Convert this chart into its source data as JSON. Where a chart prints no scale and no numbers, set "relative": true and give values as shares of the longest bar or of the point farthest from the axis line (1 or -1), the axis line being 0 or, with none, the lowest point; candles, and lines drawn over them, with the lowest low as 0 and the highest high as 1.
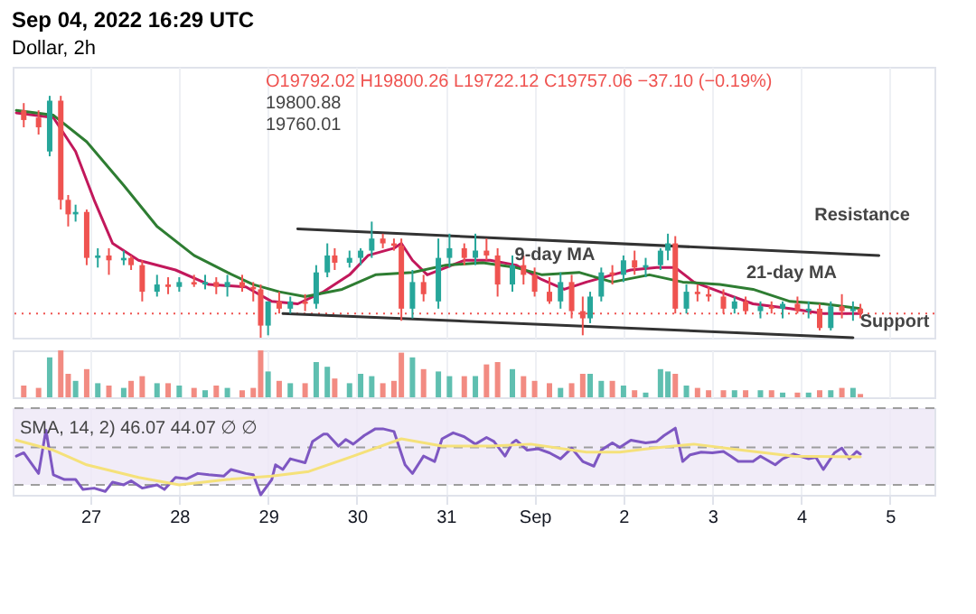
{
  "chart_data": [
    {
      "type": "candlestick",
      "title": "Sep 04, 2022 16:29 UTC",
      "subtitle": "Dollar, 2h",
      "relative": true,
      "grid": "x",
      "tick_labels": false,
      "annotations": [
        "O19792.02  H19800.26  L19722.12  C19757.06  −37.10 (−0.19%)",
        "19800.88",
        "19760.01",
        "21-day MA",
        "9-day MA",
        "Resistance",
        "Support"
      ],
      "xlim": [
        "2022-08-26T03:00",
        "2022-09-05T12:00"
      ],
      "xticks": [
        {
          "value": "2022-08-27",
          "label": null
        },
        {
          "value": "2022-08-28",
          "label": null
        },
        {
          "value": "2022-08-29",
          "label": null
        },
        {
          "value": "2022-08-30",
          "label": null
        },
        {
          "value": "2022-08-31",
          "label": null
        },
        {
          "value": "2022-09-01",
          "label": null
        },
        {
          "value": "2022-09-02",
          "label": null
        },
        {
          "value": "2022-09-03",
          "label": null
        },
        {
          "value": "2022-09-04",
          "label": null
        },
        {
          "value": "2022-09-05",
          "label": null
        }
      ],
      "x": [
        "2022-08-26T06:00",
        "2022-08-26T10:00",
        "2022-08-26T13:00",
        "2022-08-26T16:00",
        "2022-08-26T18:00",
        "2022-08-26T20:00",
        "2022-08-26T23:00",
        "2022-08-27T02:00",
        "2022-08-27T05:00",
        "2022-08-27T09:00",
        "2022-08-27T11:00",
        "2022-08-27T14:00",
        "2022-08-27T18:00",
        "2022-08-27T21:00",
        "2022-08-28T00:00",
        "2022-08-28T04:00",
        "2022-08-28T07:00",
        "2022-08-28T10:00",
        "2022-08-28T13:00",
        "2022-08-28T17:00",
        "2022-08-28T20:00",
        "2022-08-28T22:00",
        "2022-08-29T00:00",
        "2022-08-29T03:00",
        "2022-08-29T06:00",
        "2022-08-29T10:00",
        "2022-08-29T13:00",
        "2022-08-29T16:00",
        "2022-08-29T18:00",
        "2022-08-29T22:00",
        "2022-08-30T01:00",
        "2022-08-30T04:00",
        "2022-08-30T07:00",
        "2022-08-30T10:00",
        "2022-08-30T12:00",
        "2022-08-30T15:00",
        "2022-08-30T18:00",
        "2022-08-30T22:00",
        "2022-08-31T01:00",
        "2022-08-31T05:00",
        "2022-08-31T08:00",
        "2022-08-31T11:00",
        "2022-08-31T14:00",
        "2022-08-31T18:00",
        "2022-08-31T21:00",
        "2022-09-01T00:00",
        "2022-09-01T04:00",
        "2022-09-01T07:00",
        "2022-09-01T10:00",
        "2022-09-01T13:00",
        "2022-09-01T15:00",
        "2022-09-01T18:00",
        "2022-09-01T21:00",
        "2022-09-02T00:00",
        "2022-09-02T03:00",
        "2022-09-02T06:00",
        "2022-09-02T10:00",
        "2022-09-02T12:00",
        "2022-09-02T14:00",
        "2022-09-02T17:00",
        "2022-09-02T20:00",
        "2022-09-02T23:00",
        "2022-09-03T03:00",
        "2022-09-03T06:00",
        "2022-09-03T09:00",
        "2022-09-03T13:00",
        "2022-09-03T16:00",
        "2022-09-03T19:00",
        "2022-09-03T23:00",
        "2022-09-04T02:00",
        "2022-09-04T05:00",
        "2022-09-04T08:00",
        "2022-09-04T11:00",
        "2022-09-04T14:00",
        "2022-09-04T16:00"
      ],
      "ohlc": [
        [
          0.94,
          0.97,
          0.87,
          0.9
        ],
        [
          0.91,
          0.94,
          0.84,
          0.87
        ],
        [
          0.77,
          1.0,
          0.75,
          0.98
        ],
        [
          0.98,
          1.0,
          0.53,
          0.57
        ],
        [
          0.57,
          0.59,
          0.46,
          0.51
        ],
        [
          0.51,
          0.55,
          0.48,
          0.52
        ],
        [
          0.52,
          0.53,
          0.3,
          0.33
        ],
        [
          0.33,
          0.37,
          0.29,
          0.34
        ],
        [
          0.34,
          0.37,
          0.26,
          0.32
        ],
        [
          0.32,
          0.36,
          0.3,
          0.33
        ],
        [
          0.33,
          0.34,
          0.28,
          0.3
        ],
        [
          0.3,
          0.32,
          0.15,
          0.19
        ],
        [
          0.19,
          0.26,
          0.17,
          0.22
        ],
        [
          0.22,
          0.25,
          0.18,
          0.21
        ],
        [
          0.21,
          0.25,
          0.19,
          0.23
        ],
        [
          0.23,
          0.26,
          0.21,
          0.22
        ],
        [
          0.22,
          0.26,
          0.2,
          0.23
        ],
        [
          0.23,
          0.25,
          0.18,
          0.21
        ],
        [
          0.21,
          0.26,
          0.17,
          0.23
        ],
        [
          0.23,
          0.26,
          0.19,
          0.21
        ],
        [
          0.21,
          0.23,
          0.15,
          0.2
        ],
        [
          0.2,
          0.22,
          0,
          0.05
        ],
        [
          0.05,
          0.15,
          0.01,
          0.15
        ],
        [
          0.15,
          0.19,
          0.1,
          0.12
        ],
        [
          0.12,
          0.17,
          0.1,
          0.15
        ],
        [
          0.15,
          0.18,
          0.11,
          0.14
        ],
        [
          0.14,
          0.3,
          0.12,
          0.27
        ],
        [
          0.27,
          0.39,
          0.25,
          0.34
        ],
        [
          0.34,
          0.37,
          0.28,
          0.31
        ],
        [
          0.31,
          0.36,
          0.29,
          0.33
        ],
        [
          0.33,
          0.37,
          0.3,
          0.36
        ],
        [
          0.36,
          0.48,
          0.33,
          0.41
        ],
        [
          0.41,
          0.43,
          0.37,
          0.39
        ],
        [
          0.39,
          0.41,
          0.36,
          0.38
        ],
        [
          0.38,
          0.41,
          0.07,
          0.12
        ],
        [
          0.12,
          0.28,
          0.08,
          0.23
        ],
        [
          0.23,
          0.26,
          0.15,
          0.18
        ],
        [
          0.15,
          0.41,
          0.12,
          0.33
        ],
        [
          0.33,
          0.43,
          0.29,
          0.37
        ],
        [
          0.37,
          0.39,
          0.3,
          0.33
        ],
        [
          0.33,
          0.43,
          0.3,
          0.36
        ],
        [
          0.36,
          0.41,
          0.32,
          0.34
        ],
        [
          0.34,
          0.37,
          0.17,
          0.22
        ],
        [
          0.22,
          0.34,
          0.19,
          0.3
        ],
        [
          0.3,
          0.34,
          0.22,
          0.26
        ],
        [
          0.26,
          0.29,
          0.17,
          0.19
        ],
        [
          0.19,
          0.25,
          0.14,
          0.15
        ],
        [
          0.15,
          0.27,
          0.12,
          0.23
        ],
        [
          0.23,
          0.26,
          0.08,
          0.11
        ],
        [
          0.11,
          0.17,
          0.01,
          0.08
        ],
        [
          0.08,
          0.19,
          0.06,
          0.17
        ],
        [
          0.17,
          0.29,
          0.15,
          0.27
        ],
        [
          0.27,
          0.3,
          0.22,
          0.26
        ],
        [
          0.26,
          0.34,
          0.23,
          0.32
        ],
        [
          0.32,
          0.36,
          0.26,
          0.29
        ],
        [
          0.29,
          0.33,
          0.25,
          0.3
        ],
        [
          0.3,
          0.37,
          0.28,
          0.36
        ],
        [
          0.36,
          0.43,
          0.32,
          0.39
        ],
        [
          0.39,
          0.42,
          0.1,
          0.12
        ],
        [
          0.12,
          0.22,
          0.1,
          0.19
        ],
        [
          0.19,
          0.22,
          0.15,
          0.18
        ],
        [
          0.18,
          0.21,
          0.15,
          0.17
        ],
        [
          0.17,
          0.2,
          0.1,
          0.12
        ],
        [
          0.12,
          0.17,
          0.1,
          0.15
        ],
        [
          0.15,
          0.17,
          0.1,
          0.11
        ],
        [
          0.11,
          0.15,
          0.08,
          0.13
        ],
        [
          0.13,
          0.15,
          0.1,
          0.12
        ],
        [
          0.12,
          0.15,
          0.08,
          0.14
        ],
        [
          0.14,
          0.17,
          0.1,
          0.11
        ],
        [
          0.11,
          0.15,
          0.08,
          0.12
        ],
        [
          0.12,
          0.14,
          0.03,
          0.04
        ],
        [
          0.04,
          0.15,
          0.03,
          0.13
        ],
        [
          0.13,
          0.18,
          0.08,
          0.11
        ],
        [
          0.11,
          0.15,
          0.07,
          0.12
        ],
        [
          0.12,
          0.14,
          0.08,
          0.1
        ]
      ],
      "colors": [
        "#ef5350",
        "#ef5350",
        "#26a69a",
        "#ef5350",
        "#ef5350",
        "#26a69a",
        "#ef5350",
        "#26a69a",
        "#ef5350",
        "#26a69a",
        "#ef5350",
        "#ef5350",
        "#26a69a",
        "#ef5350",
        "#26a69a",
        "#ef5350",
        "#26a69a",
        "#ef5350",
        "#26a69a",
        "#ef5350",
        "#ef5350",
        "#ef5350",
        "#26a69a",
        "#ef5350",
        "#26a69a",
        "#ef5350",
        "#26a69a",
        "#26a69a",
        "#ef5350",
        "#26a69a",
        "#26a69a",
        "#26a69a",
        "#ef5350",
        "#ef5350",
        "#ef5350",
        "#26a69a",
        "#ef5350",
        "#26a69a",
        "#26a69a",
        "#ef5350",
        "#26a69a",
        "#ef5350",
        "#ef5350",
        "#26a69a",
        "#ef5350",
        "#ef5350",
        "#ef5350",
        "#26a69a",
        "#ef5350",
        "#ef5350",
        "#26a69a",
        "#26a69a",
        "#ef5350",
        "#26a69a",
        "#ef5350",
        "#26a69a",
        "#26a69a",
        "#26a69a",
        "#ef5350",
        "#26a69a",
        "#ef5350",
        "#ef5350",
        "#ef5350",
        "#26a69a",
        "#ef5350",
        "#26a69a",
        "#ef5350",
        "#26a69a",
        "#ef5350",
        "#26a69a",
        "#ef5350",
        "#26a69a",
        "#ef5350",
        "#26a69a",
        "#ef5350"
      ],
      "ref_lines": [
        {
          "axis": "y",
          "value": 0.1,
          "color": "#ef5350",
          "line_style": "dotted"
        }
      ],
      "series": [
        {
          "type": "line",
          "color": "#c2185b",
          "x": [
            "2022-08-26T04:00",
            "2022-08-26T14:00",
            "2022-08-26T20:00",
            "2022-08-27T01:00",
            "2022-08-27T06:00",
            "2022-08-27T13:00",
            "2022-08-27T23:00",
            "2022-08-28T08:00",
            "2022-08-28T18:00",
            "2022-08-29T01:00",
            "2022-08-29T08:00",
            "2022-08-29T15:00",
            "2022-08-29T22:00",
            "2022-08-30T03:00",
            "2022-08-30T10:00",
            "2022-08-30T12:00",
            "2022-08-30T15:00",
            "2022-08-30T19:00",
            "2022-08-31T00:00",
            "2022-08-31T05:00",
            "2022-08-31T12:00",
            "2022-08-31T19:00",
            "2022-09-01T02:00",
            "2022-09-01T08:00",
            "2022-09-01T14:00",
            "2022-09-01T21:00",
            "2022-09-02T02:00",
            "2022-09-02T09:00",
            "2022-09-02T14:00",
            "2022-09-02T19:00",
            "2022-09-03T02:00",
            "2022-09-03T11:00",
            "2022-09-03T21:00",
            "2022-09-04T06:00",
            "2022-09-04T16:00"
          ],
          "values": [
            0.93,
            0.91,
            0.77,
            0.57,
            0.39,
            0.32,
            0.28,
            0.22,
            0.21,
            0.15,
            0.14,
            0.19,
            0.26,
            0.34,
            0.37,
            0.39,
            0.32,
            0.26,
            0.29,
            0.32,
            0.32,
            0.3,
            0.24,
            0.2,
            0.23,
            0.26,
            0.28,
            0.29,
            0.29,
            0.23,
            0.19,
            0.14,
            0.12,
            0.1,
            0.1
          ]
        },
        {
          "type": "line",
          "color": "#2e7d32",
          "x": [
            "2022-08-26T04:00",
            "2022-08-26T14:00",
            "2022-08-26T23:00",
            "2022-08-27T09:00",
            "2022-08-27T18:00",
            "2022-08-28T04:00",
            "2022-08-28T13:00",
            "2022-08-28T20:00",
            "2022-08-29T03:00",
            "2022-08-29T10:00",
            "2022-08-29T20:00",
            "2022-08-30T05:00",
            "2022-08-30T15:00",
            "2022-08-31T00:00",
            "2022-08-31T10:00",
            "2022-08-31T19:00",
            "2022-09-01T02:00",
            "2022-09-01T12:00",
            "2022-09-01T21:00",
            "2022-09-02T07:00",
            "2022-09-02T16:00",
            "2022-09-03T02:00",
            "2022-09-03T11:00",
            "2022-09-03T21:00",
            "2022-09-04T06:00",
            "2022-09-04T16:00"
          ],
          "values": [
            0.94,
            0.92,
            0.81,
            0.63,
            0.46,
            0.34,
            0.27,
            0.22,
            0.19,
            0.17,
            0.2,
            0.26,
            0.27,
            0.3,
            0.31,
            0.29,
            0.26,
            0.27,
            0.23,
            0.26,
            0.23,
            0.22,
            0.2,
            0.15,
            0.14,
            0.12
          ]
        },
        {
          "type": "line",
          "color": "#333333",
          "x": [
            "2022-08-29T08:00",
            "2022-09-04T21:00"
          ],
          "values": [
            0.45,
            0.34
          ]
        },
        {
          "type": "line",
          "color": "#333333",
          "x": [
            "2022-08-29T04:00",
            "2022-09-04T14:00"
          ],
          "values": [
            0.1,
            0
          ]
        }
      ]
    },
    {
      "type": "bar",
      "relative": true,
      "grid": "x",
      "tick_labels": false,
      "xlim": [
        "2022-08-26T03:00",
        "2022-09-05T12:00"
      ],
      "xticks": [
        {
          "value": "2022-08-27",
          "label": null
        },
        {
          "value": "2022-08-28",
          "label": null
        },
        {
          "value": "2022-08-29",
          "label": null
        },
        {
          "value": "2022-08-30",
          "label": null
        },
        {
          "value": "2022-08-31",
          "label": null
        },
        {
          "value": "2022-09-01",
          "label": null
        },
        {
          "value": "2022-09-02",
          "label": null
        },
        {
          "value": "2022-09-03",
          "label": null
        },
        {
          "value": "2022-09-04",
          "label": null
        },
        {
          "value": "2022-09-05",
          "label": null
        }
      ],
      "x": [
        "2022-08-26T06:00",
        "2022-08-26T10:00",
        "2022-08-26T13:00",
        "2022-08-26T16:00",
        "2022-08-26T18:00",
        "2022-08-26T20:00",
        "2022-08-26T23:00",
        "2022-08-27T02:00",
        "2022-08-27T05:00",
        "2022-08-27T09:00",
        "2022-08-27T11:00",
        "2022-08-27T14:00",
        "2022-08-27T18:00",
        "2022-08-27T21:00",
        "2022-08-28T00:00",
        "2022-08-28T04:00",
        "2022-08-28T07:00",
        "2022-08-28T10:00",
        "2022-08-28T13:00",
        "2022-08-28T17:00",
        "2022-08-28T20:00",
        "2022-08-28T22:00",
        "2022-08-29T00:00",
        "2022-08-29T03:00",
        "2022-08-29T06:00",
        "2022-08-29T10:00",
        "2022-08-29T13:00",
        "2022-08-29T16:00",
        "2022-08-29T18:00",
        "2022-08-29T22:00",
        "2022-08-30T01:00",
        "2022-08-30T04:00",
        "2022-08-30T07:00",
        "2022-08-30T10:00",
        "2022-08-30T12:00",
        "2022-08-30T15:00",
        "2022-08-30T18:00",
        "2022-08-30T22:00",
        "2022-08-31T01:00",
        "2022-08-31T05:00",
        "2022-08-31T08:00",
        "2022-08-31T11:00",
        "2022-08-31T14:00",
        "2022-08-31T18:00",
        "2022-08-31T21:00",
        "2022-09-01T00:00",
        "2022-09-01T04:00",
        "2022-09-01T07:00",
        "2022-09-01T10:00",
        "2022-09-01T13:00",
        "2022-09-01T15:00",
        "2022-09-01T18:00",
        "2022-09-01T21:00",
        "2022-09-02T00:00",
        "2022-09-02T03:00",
        "2022-09-02T06:00",
        "2022-09-02T10:00",
        "2022-09-02T12:00",
        "2022-09-02T14:00",
        "2022-09-02T17:00",
        "2022-09-02T20:00",
        "2022-09-02T23:00",
        "2022-09-03T03:00",
        "2022-09-03T06:00",
        "2022-09-03T09:00",
        "2022-09-03T13:00",
        "2022-09-03T16:00",
        "2022-09-03T19:00",
        "2022-09-03T23:00",
        "2022-09-04T02:00",
        "2022-09-04T05:00",
        "2022-09-04T08:00",
        "2022-09-04T11:00",
        "2022-09-04T14:00",
        "2022-09-04T16:00"
      ],
      "values": [
        0.25,
        0.2,
        0.85,
        1.0,
        0.5,
        0.35,
        0.6,
        0.3,
        0.25,
        0.2,
        0.35,
        0.45,
        0.3,
        0.3,
        0.25,
        0.2,
        0.15,
        0.25,
        0.2,
        0.15,
        0.2,
        1.0,
        0.55,
        0.35,
        0.3,
        0.3,
        0.75,
        0.65,
        0.4,
        0.3,
        0.5,
        0.45,
        0.3,
        0.35,
        0.95,
        0.85,
        0.6,
        0.55,
        0.45,
        0.45,
        0.45,
        0.7,
        0.75,
        0.6,
        0.45,
        0.35,
        0.3,
        0.2,
        0.3,
        0.5,
        0.5,
        0.35,
        0.35,
        0.25,
        0.15,
        0.1,
        0.6,
        0.55,
        0.5,
        0.25,
        0.2,
        0.15,
        0.15,
        0.15,
        0.15,
        0.15,
        0.15,
        0.1,
        0.1,
        0.1,
        0.15,
        0.15,
        0.2,
        0.2,
        0.07
      ],
      "colors": [
        "#f28b82",
        "#f28b82",
        "#5fbfb0",
        "#f28b82",
        "#f28b82",
        "#5fbfb0",
        "#f28b82",
        "#5fbfb0",
        "#f28b82",
        "#5fbfb0",
        "#f28b82",
        "#f28b82",
        "#5fbfb0",
        "#f28b82",
        "#5fbfb0",
        "#f28b82",
        "#5fbfb0",
        "#f28b82",
        "#5fbfb0",
        "#f28b82",
        "#f28b82",
        "#f28b82",
        "#5fbfb0",
        "#f28b82",
        "#5fbfb0",
        "#f28b82",
        "#5fbfb0",
        "#5fbfb0",
        "#f28b82",
        "#5fbfb0",
        "#5fbfb0",
        "#5fbfb0",
        "#f28b82",
        "#f28b82",
        "#f28b82",
        "#5fbfb0",
        "#f28b82",
        "#5fbfb0",
        "#5fbfb0",
        "#f28b82",
        "#5fbfb0",
        "#f28b82",
        "#f28b82",
        "#5fbfb0",
        "#f28b82",
        "#f28b82",
        "#f28b82",
        "#5fbfb0",
        "#f28b82",
        "#f28b82",
        "#5fbfb0",
        "#5fbfb0",
        "#f28b82",
        "#5fbfb0",
        "#f28b82",
        "#5fbfb0",
        "#5fbfb0",
        "#5fbfb0",
        "#f28b82",
        "#5fbfb0",
        "#f28b82",
        "#f28b82",
        "#f28b82",
        "#5fbfb0",
        "#f28b82",
        "#5fbfb0",
        "#f28b82",
        "#5fbfb0",
        "#f28b82",
        "#5fbfb0",
        "#f28b82",
        "#5fbfb0",
        "#f28b82",
        "#5fbfb0",
        "#f28b82"
      ]
    },
    {
      "type": "line",
      "relative": true,
      "grid": "x",
      "tick_labels": "x",
      "xlim": [
        "2022-08-26T03:00",
        "2022-09-05T12:00"
      ],
      "xticks": [
        {
          "value": "2022-08-27",
          "label": "27"
        },
        {
          "value": "2022-08-28",
          "label": "28"
        },
        {
          "value": "2022-08-29",
          "label": "29"
        },
        {
          "value": "2022-08-30",
          "label": "30"
        },
        {
          "value": "2022-08-31",
          "label": "31"
        },
        {
          "value": "2022-09-01",
          "label": "Sep"
        },
        {
          "value": "2022-09-02",
          "label": "2"
        },
        {
          "value": "2022-09-03",
          "label": "3"
        },
        {
          "value": "2022-09-04",
          "label": "4"
        },
        {
          "value": "2022-09-05",
          "label": "5"
        }
      ],
      "annotations": [
        "SMA, 14, 2)  46.07  44.07  ∅  ∅"
      ],
      "bands": [
        {
          "axis": "y",
          "from": 0.15,
          "to": 1.3,
          "color": "#ede7f6"
        }
      ],
      "ref_lines": [
        {
          "axis": "y",
          "value": 0.15,
          "color": "#9e9e9e",
          "line_style": "dashed"
        },
        {
          "axis": "y",
          "value": 0.71,
          "color": "#9e9e9e",
          "line_style": "dashed"
        },
        {
          "axis": "y",
          "value": 1.3,
          "color": "#9e9e9e",
          "line_style": "dashed"
        }
      ],
      "series": [
        {
          "type": "line",
          "color": "#7e57c2",
          "x": [
            "2022-08-26T04:00",
            "2022-08-26T06:00",
            "2022-08-26T10:00",
            "2022-08-26T12:00",
            "2022-08-26T14:00",
            "2022-08-26T17:00",
            "2022-08-26T20:00",
            "2022-08-26T22:00",
            "2022-08-27T01:00",
            "2022-08-27T04:00",
            "2022-08-27T06:00",
            "2022-08-27T09:00",
            "2022-08-27T11:00",
            "2022-08-27T14:00",
            "2022-08-27T18:00",
            "2022-08-27T20:00",
            "2022-08-27T23:00",
            "2022-08-28T02:00",
            "2022-08-28T05:00",
            "2022-08-28T08:00",
            "2022-08-28T12:00",
            "2022-08-28T14:00",
            "2022-08-28T18:00",
            "2022-08-28T20:00",
            "2022-08-28T22:00",
            "2022-08-29T01:00",
            "2022-08-29T02:00",
            "2022-08-29T04:00",
            "2022-08-29T06:00",
            "2022-08-29T10:00",
            "2022-08-29T12:00",
            "2022-08-29T15:00",
            "2022-08-29T16:00",
            "2022-08-29T19:00",
            "2022-08-29T21:00",
            "2022-08-29T23:00",
            "2022-08-30T02:00",
            "2022-08-30T05:00",
            "2022-08-30T07:00",
            "2022-08-30T10:00",
            "2022-08-30T13:00",
            "2022-08-30T15:00",
            "2022-08-30T18:00",
            "2022-08-30T21:00",
            "2022-08-30T23:00",
            "2022-08-31T02:00",
            "2022-08-31T05:00",
            "2022-08-31T08:00",
            "2022-08-31T11:00",
            "2022-08-31T13:00",
            "2022-08-31T16:00",
            "2022-08-31T18:00",
            "2022-08-31T19:00",
            "2022-08-31T22:00",
            "2022-09-01T01:00",
            "2022-09-01T04:00",
            "2022-09-01T07:00",
            "2022-09-01T10:00",
            "2022-09-01T13:00",
            "2022-09-01T16:00",
            "2022-09-01T18:00",
            "2022-09-01T21:00",
            "2022-09-01T23:00",
            "2022-09-02T02:00",
            "2022-09-02T06:00",
            "2022-09-02T09:00",
            "2022-09-02T11:00",
            "2022-09-02T14:00",
            "2022-09-02T16:00",
            "2022-09-02T18:00",
            "2022-09-02T21:00",
            "2022-09-03T00:00",
            "2022-09-03T03:00",
            "2022-09-03T05:00",
            "2022-09-03T07:00",
            "2022-09-03T11:00",
            "2022-09-03T13:00",
            "2022-09-03T17:00",
            "2022-09-03T19:00",
            "2022-09-03T22:00",
            "2022-09-04T02:00",
            "2022-09-04T04:00",
            "2022-09-04T06:00",
            "2022-09-04T09:00",
            "2022-09-04T11:00",
            "2022-09-04T13:00",
            "2022-09-04T15:00",
            "2022-09-04T16:00"
          ],
          "values": [
            0.58,
            0.63,
            0.32,
            0.97,
            0.3,
            0.23,
            0.23,
            0.08,
            0.1,
            0.05,
            0.19,
            0.15,
            0.21,
            0.1,
            0.15,
            0.08,
            0.26,
            0.24,
            0.32,
            0.3,
            0.28,
            0.38,
            0.32,
            0.3,
            0,
            0.23,
            0.45,
            0.38,
            0.54,
            0.48,
            0.8,
            0.91,
            0.91,
            0.73,
            0.83,
            0.76,
            0.89,
            0.99,
            0.99,
            0.95,
            0.45,
            0.32,
            0.58,
            0.5,
            0.84,
            0.93,
            0.87,
            0.76,
            0.86,
            0.8,
            0.58,
            0.78,
            0.82,
            0.67,
            0.69,
            0.63,
            0.54,
            0.7,
            0.5,
            0.43,
            0.67,
            0.78,
            0.71,
            0.82,
            0.78,
            0.8,
            0.89,
            1.0,
            0.5,
            0.6,
            0.64,
            0.63,
            0.65,
            0.58,
            0.5,
            0.5,
            0.58,
            0.45,
            0.54,
            0.61,
            0.54,
            0.56,
            0.38,
            0.63,
            0.7,
            0.54,
            0.65,
            0.61
          ]
        },
        {
          "type": "line",
          "color": "#f5e17a",
          "x": [
            "2022-08-26T04:00",
            "2022-08-26T14:00",
            "2022-08-26T23:00",
            "2022-08-27T13:00",
            "2022-08-28T00:00",
            "2022-08-28T13:00",
            "2022-08-29T01:00",
            "2022-08-29T11:00",
            "2022-08-29T23:00",
            "2022-08-30T12:00",
            "2022-08-30T23:00",
            "2022-08-31T12:00",
            "2022-08-31T23:00",
            "2022-09-01T14:00",
            "2022-09-01T23:00",
            "2022-09-02T08:00",
            "2022-09-02T19:00",
            "2022-09-03T08:00",
            "2022-09-03T22:00",
            "2022-09-04T16:00"
          ],
          "values": [
            0.82,
            0.67,
            0.45,
            0.26,
            0.15,
            0.23,
            0.28,
            0.35,
            0.58,
            0.84,
            0.73,
            0.73,
            0.76,
            0.64,
            0.64,
            0.7,
            0.76,
            0.67,
            0.58,
            0.57
          ]
        }
      ]
    }
  ]
}
